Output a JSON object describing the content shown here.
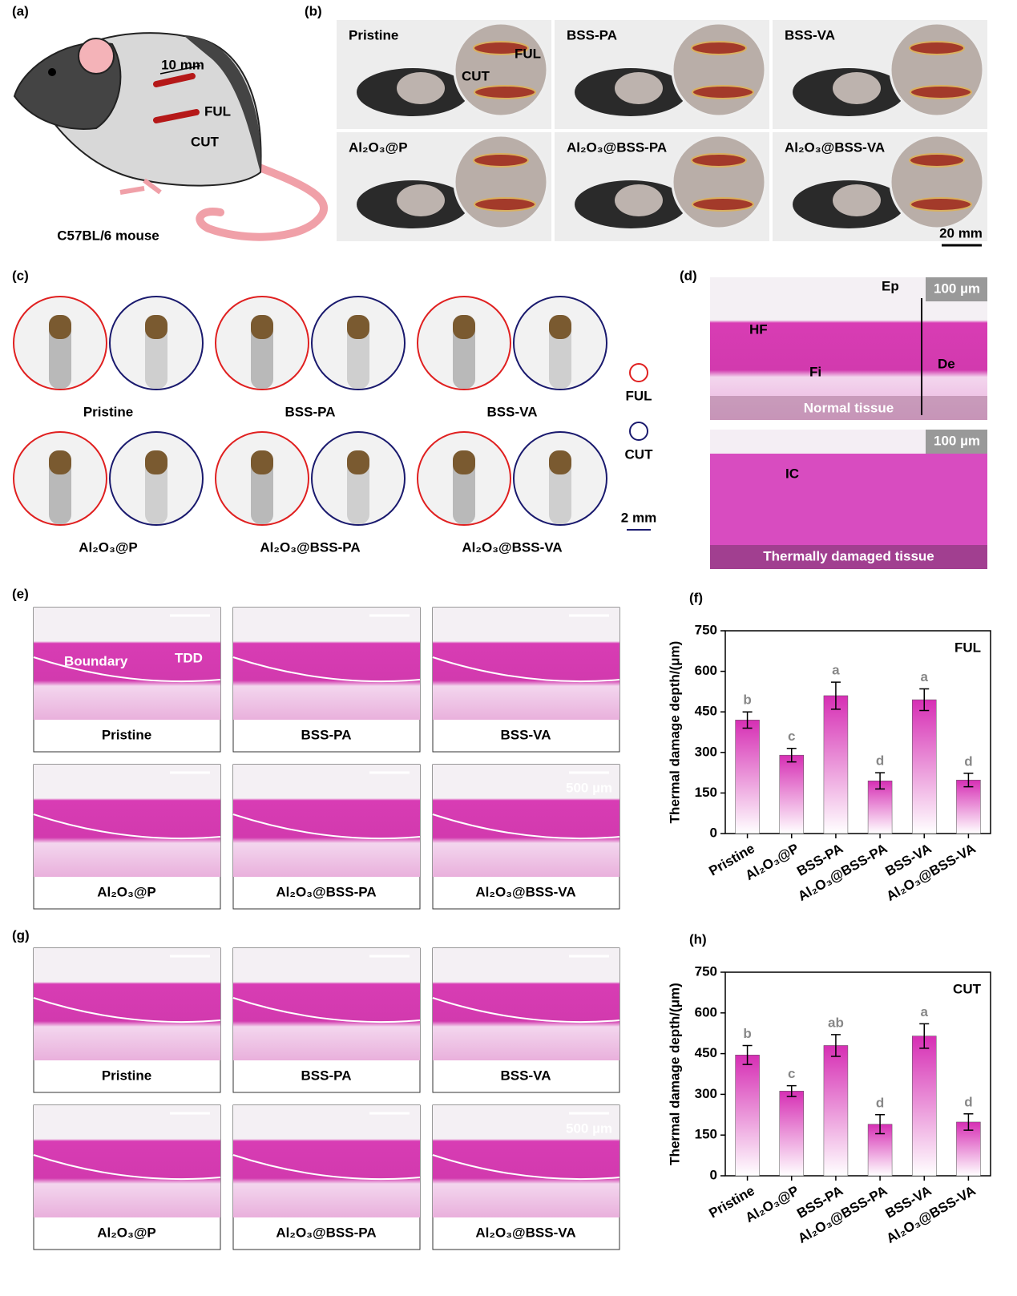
{
  "panels": {
    "a": {
      "label": "(a)",
      "dimension": "10 mm",
      "ful": "FUL",
      "cut": "CUT",
      "caption": "C57BL/6 mouse"
    },
    "b": {
      "label": "(b)",
      "groups": [
        "Pristine",
        "BSS-PA",
        "BSS-VA",
        "Al₂O₃@P",
        "Al₂O₃@BSS-PA",
        "Al₂O₃@BSS-VA"
      ],
      "ful": "FUL",
      "cut": "CUT",
      "scale": "20 mm"
    },
    "c": {
      "label": "(c)",
      "groups": [
        "Pristine",
        "BSS-PA",
        "BSS-VA",
        "Al₂O₃@P",
        "Al₂O₃@BSS-PA",
        "Al₂O₃@BSS-VA"
      ],
      "legend": [
        "FUL",
        "CUT"
      ],
      "scale": "2 mm"
    },
    "d": {
      "label": "(d)",
      "top": {
        "scale": "100 µm",
        "annotations": [
          "Ep",
          "HF",
          "Fi",
          "De"
        ],
        "caption": "Normal tissue"
      },
      "bottom": {
        "scale": "100 µm",
        "annotations": [
          "IC"
        ],
        "caption": "Thermally damaged tissue"
      }
    },
    "e": {
      "label": "(e)",
      "groups": [
        "Pristine",
        "BSS-PA",
        "BSS-VA",
        "Al₂O₃@P",
        "Al₂O₃@BSS-PA",
        "Al₂O₃@BSS-VA"
      ],
      "boundary": "Boundary",
      "tdd": "TDD",
      "scale": "500 µm"
    },
    "g": {
      "label": "(g)",
      "groups": [
        "Pristine",
        "BSS-PA",
        "BSS-VA",
        "Al₂O₃@P",
        "Al₂O₃@BSS-PA",
        "Al₂O₃@BSS-VA"
      ],
      "scale": "500 µm"
    }
  },
  "chart_data": [
    {
      "type": "bar",
      "panel_label": "(f)",
      "title": "FUL",
      "y_label": "Thermal damage depth/(μm)",
      "categories": [
        "Pristine",
        "Al₂O₃@P",
        "BSS-PA",
        "Al₂O₃@BSS-PA",
        "BSS-VA",
        "Al₂O₃@BSS-VA"
      ],
      "values": [
        420,
        290,
        510,
        195,
        495,
        198
      ],
      "errors": [
        30,
        25,
        50,
        30,
        40,
        25
      ],
      "letters": [
        "b",
        "c",
        "a",
        "d",
        "a",
        "d"
      ],
      "color": "#d62fb4",
      "ylim": [
        0,
        750
      ],
      "yticks": [
        0,
        150,
        300,
        450,
        600,
        750
      ]
    },
    {
      "type": "bar",
      "panel_label": "(h)",
      "title": "CUT",
      "y_label": "Thermal damage depth/(μm)",
      "categories": [
        "Pristine",
        "Al₂O₃@P",
        "BSS-PA",
        "Al₂O₃@BSS-PA",
        "BSS-VA",
        "Al₂O₃@BSS-VA"
      ],
      "values": [
        445,
        312,
        480,
        190,
        515,
        198
      ],
      "errors": [
        35,
        20,
        40,
        35,
        45,
        30
      ],
      "letters": [
        "b",
        "c",
        "ab",
        "d",
        "a",
        "d"
      ],
      "color": "#d62fb4",
      "ylim": [
        0,
        750
      ],
      "yticks": [
        0,
        150,
        300,
        450,
        600,
        750
      ]
    }
  ]
}
